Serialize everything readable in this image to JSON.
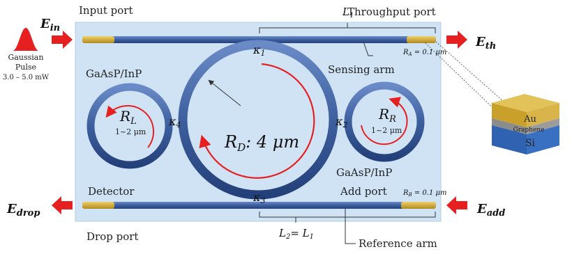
{
  "labels": {
    "input_port": "Input port",
    "throughput_port": "Throughput port",
    "drop_port": "Drop port",
    "add_port": "Add port",
    "detector": "Detector",
    "sensing_arm": "Sensing arm",
    "reference_arm": "Reference arm",
    "material_left": "GaAsP/InP",
    "material_right": "GaAsP/InP",
    "gaussian_line1": "Gaussian",
    "gaussian_line2": "Pulse",
    "power_range": "3.0 – 5.0 mW"
  },
  "signals": {
    "e_in": "E",
    "e_in_sub": "in",
    "e_th": "E",
    "e_th_sub": "th",
    "e_drop": "E",
    "e_drop_sub": "drop",
    "e_add": "E",
    "e_add_sub": "add"
  },
  "lengths": {
    "l1": "L",
    "l1_sub": "1",
    "l2": "L",
    "l2_sub": "2",
    "l2_eq": "= L",
    "l2_eq_sub": "1"
  },
  "coupling": {
    "k1": "κ",
    "k1_sub": "1",
    "k2": "κ",
    "k2_sub": "2",
    "k3": "κ",
    "k3_sub": "3",
    "k4": "κ",
    "k4_sub": "4"
  },
  "radii": {
    "rl": "R",
    "rl_sub": "L",
    "rl_range": "1~2 μm",
    "rr": "R",
    "rr_sub": "R",
    "rr_range": "1~2 μm",
    "rd": "R",
    "rd_sub": "D",
    "rd_value": ": 4 μm",
    "ra": "R",
    "ra_sub": "A",
    "ra_value": " = 0.1 μm",
    "rb": "R",
    "rb_sub": "B",
    "rb_value": " = 0.1 μm"
  },
  "layers": {
    "top": "Au",
    "middle": "Graphene",
    "bottom": "Si"
  },
  "colors": {
    "substrate": "#cfe3f5",
    "waveguide": "#3d5f9e",
    "gold": "#d4a62a",
    "arrow_red": "#e62020",
    "au": "#c9a12a",
    "graphene": "#8c8c8c",
    "si": "#2f62b0"
  }
}
